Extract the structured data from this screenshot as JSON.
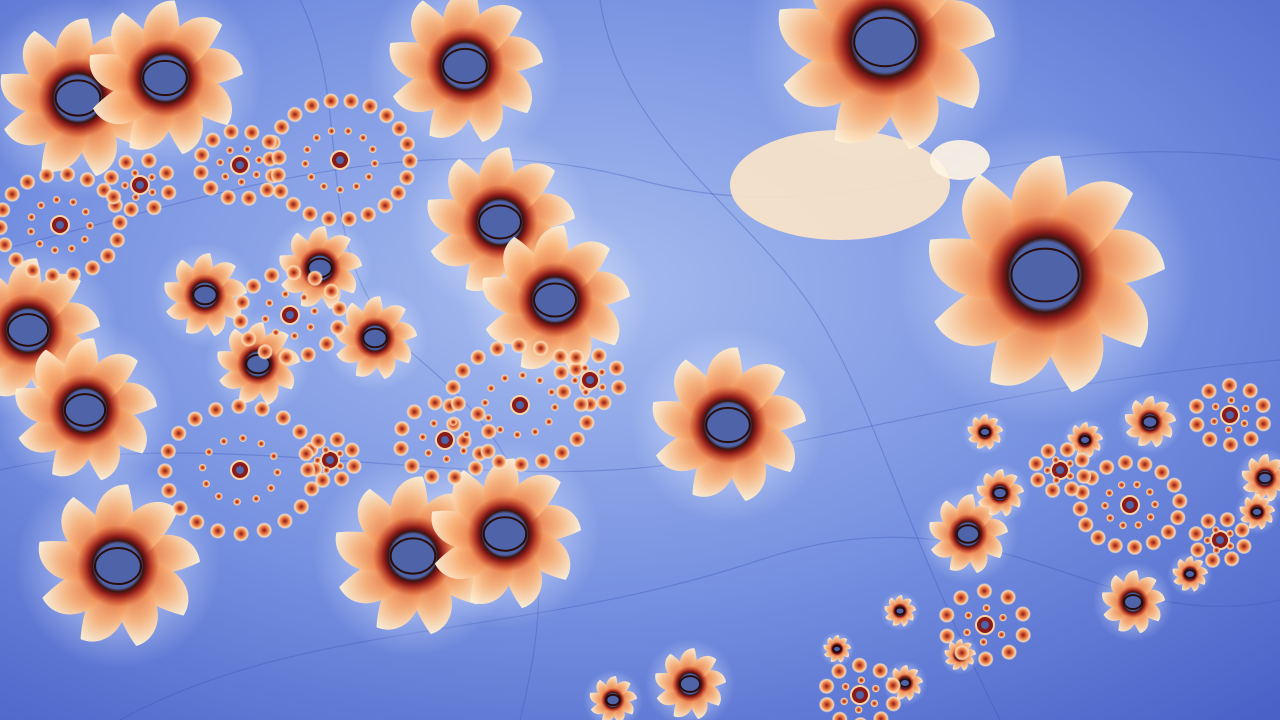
{
  "image": {
    "subject": "fractal-artwork",
    "palette": {
      "background_light": "#a8bdf0",
      "background_mid": "#7590e0",
      "background_dark": "#4a62c8",
      "halo": "#ffffff",
      "petal_outer": "#fdf1d8",
      "petal_mid": "#f7a769",
      "petal_inner": "#e0663a",
      "ring": "#8b1a1a",
      "core": "#4e63a8"
    }
  }
}
